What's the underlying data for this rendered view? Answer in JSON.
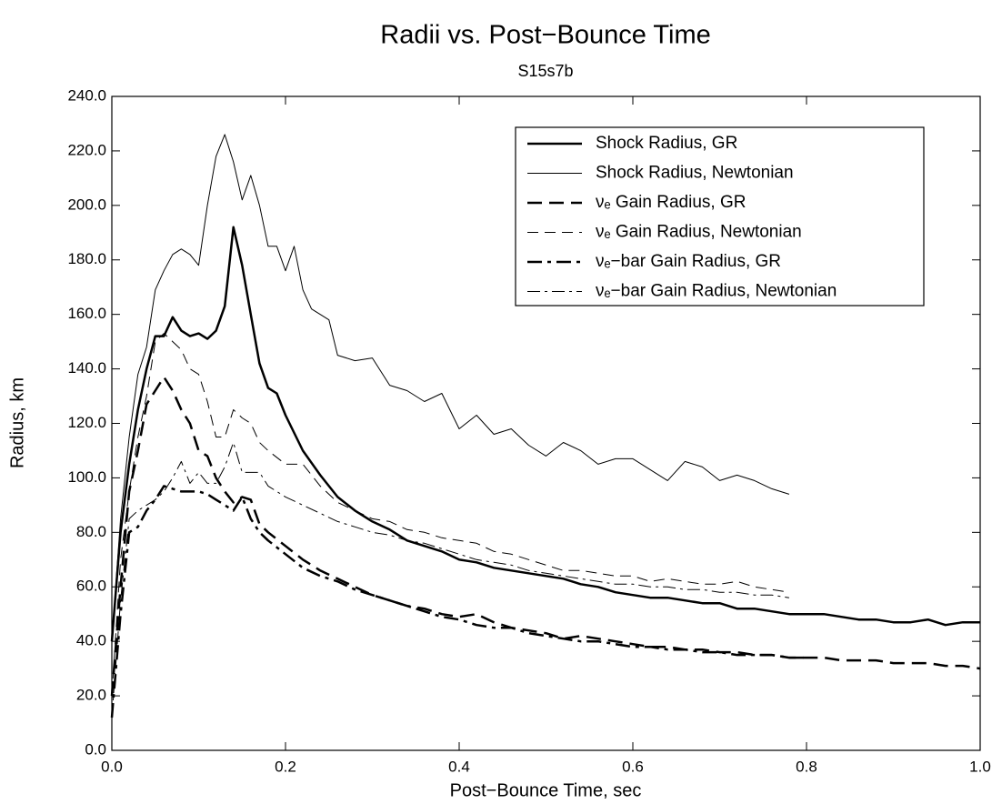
{
  "chart_data": {
    "type": "line",
    "title": "Radii vs. Post−Bounce Time",
    "subtitle": "S15s7b",
    "x_label": "Post−Bounce Time, sec",
    "y_label": "Radius, km",
    "xlim": [
      0,
      1
    ],
    "ylim": [
      0,
      240
    ],
    "xticks": [
      {
        "value": 0,
        "label": "0.0"
      },
      0.2,
      0.4,
      0.6,
      0.8,
      {
        "value": 1,
        "label": "1.0"
      }
    ],
    "yticks": [
      {
        "value": 0,
        "label": "0.0"
      },
      {
        "value": 20,
        "label": "20.0"
      },
      {
        "value": 40,
        "label": "40.0"
      },
      {
        "value": 60,
        "label": "60.0"
      },
      {
        "value": 80,
        "label": "80.0"
      },
      {
        "value": 100,
        "label": "100.0"
      },
      {
        "value": 120,
        "label": "120.0"
      },
      {
        "value": 140,
        "label": "140.0"
      },
      {
        "value": 160,
        "label": "160.0"
      },
      {
        "value": 180,
        "label": "180.0"
      },
      {
        "value": 200,
        "label": "200.0"
      },
      {
        "value": 220,
        "label": "220.0"
      },
      {
        "value": 240,
        "label": "240.0"
      }
    ],
    "legend": "upper right",
    "series": [
      {
        "name": "Shock Radius, GR",
        "color": "#000000",
        "linestyle": "solid",
        "linewidth": 2.5,
        "x": [
          0,
          0.01,
          0.02,
          0.03,
          0.04,
          0.05,
          0.06,
          0.07,
          0.08,
          0.09,
          0.1,
          0.11,
          0.12,
          0.13,
          0.14,
          0.15,
          0.16,
          0.17,
          0.18,
          0.19,
          0.2,
          0.22,
          0.24,
          0.26,
          0.28,
          0.3,
          0.32,
          0.34,
          0.36,
          0.38,
          0.4,
          0.42,
          0.44,
          0.46,
          0.48,
          0.5,
          0.52,
          0.54,
          0.56,
          0.58,
          0.6,
          0.62,
          0.64,
          0.66,
          0.68,
          0.7,
          0.72,
          0.74,
          0.76,
          0.78,
          0.8,
          0.82,
          0.84,
          0.86,
          0.88,
          0.9,
          0.92,
          0.94,
          0.96,
          0.98,
          1
        ],
        "values": [
          40,
          80,
          105,
          125,
          140,
          152,
          152,
          159,
          154,
          152,
          153,
          151,
          154,
          163,
          192,
          178,
          160,
          142,
          133,
          131,
          123,
          110,
          101,
          93,
          88,
          84,
          81,
          77,
          75,
          73,
          70,
          69,
          67,
          66,
          65,
          64,
          63,
          61,
          60,
          58,
          57,
          56,
          56,
          55,
          54,
          54,
          52,
          52,
          51,
          50,
          50,
          50,
          49,
          48,
          48,
          47,
          47,
          48,
          46,
          47,
          47
        ]
      },
      {
        "name": "Shock Radius, Newtonian",
        "color": "#000000",
        "linestyle": "solid",
        "linewidth": 1,
        "x": [
          0,
          0.01,
          0.02,
          0.03,
          0.04,
          0.05,
          0.06,
          0.07,
          0.08,
          0.09,
          0.1,
          0.11,
          0.12,
          0.13,
          0.14,
          0.15,
          0.16,
          0.17,
          0.18,
          0.19,
          0.2,
          0.21,
          0.22,
          0.23,
          0.24,
          0.25,
          0.26,
          0.28,
          0.3,
          0.32,
          0.34,
          0.36,
          0.38,
          0.4,
          0.42,
          0.44,
          0.46,
          0.48,
          0.5,
          0.52,
          0.54,
          0.56,
          0.58,
          0.6,
          0.62,
          0.64,
          0.66,
          0.68,
          0.7,
          0.72,
          0.74,
          0.76,
          0.78
        ],
        "values": [
          40,
          85,
          115,
          138,
          148,
          169,
          176,
          182,
          184,
          182,
          178,
          200,
          218,
          226,
          216,
          202,
          211,
          200,
          185,
          185,
          176,
          185,
          169,
          162,
          160,
          158,
          145,
          143,
          144,
          134,
          132,
          128,
          131,
          118,
          123,
          116,
          118,
          112,
          108,
          113,
          110,
          105,
          107,
          107,
          103,
          99,
          106,
          104,
          99,
          101,
          99,
          96,
          94
        ]
      },
      {
        "name": "νₑ Gain Radius, GR",
        "color": "#000000",
        "linestyle": "dashed",
        "linewidth": 2.5,
        "x": [
          0,
          0.01,
          0.02,
          0.03,
          0.04,
          0.05,
          0.06,
          0.07,
          0.08,
          0.09,
          0.1,
          0.11,
          0.12,
          0.13,
          0.14,
          0.15,
          0.16,
          0.17,
          0.18,
          0.2,
          0.22,
          0.24,
          0.26,
          0.28,
          0.3,
          0.32,
          0.34,
          0.36,
          0.38,
          0.4,
          0.42,
          0.44,
          0.46,
          0.48,
          0.5,
          0.52,
          0.54,
          0.56,
          0.58,
          0.6,
          0.62,
          0.64,
          0.66,
          0.68,
          0.7,
          0.72,
          0.74,
          0.76,
          0.78,
          0.8,
          0.82,
          0.84,
          0.86,
          0.88,
          0.9,
          0.92,
          0.94,
          0.96,
          0.98,
          1
        ],
        "values": [
          20,
          60,
          95,
          110,
          127,
          132,
          137,
          132,
          125,
          120,
          110,
          108,
          100,
          95,
          91,
          93,
          92,
          83,
          80,
          75,
          70,
          66,
          63,
          60,
          57,
          55,
          53,
          52,
          50,
          49,
          50,
          47,
          45,
          44,
          43,
          41,
          42,
          41,
          40,
          39,
          38,
          38,
          37,
          37,
          36,
          36,
          35,
          35,
          34,
          34,
          34,
          33,
          33,
          33,
          32,
          32,
          32,
          31,
          31,
          30
        ]
      },
      {
        "name": "νₑ Gain Radius, Newtonian",
        "color": "#000000",
        "linestyle": "dashed",
        "linewidth": 1,
        "x": [
          0,
          0.01,
          0.02,
          0.03,
          0.04,
          0.05,
          0.06,
          0.07,
          0.08,
          0.09,
          0.1,
          0.11,
          0.12,
          0.13,
          0.14,
          0.15,
          0.16,
          0.17,
          0.18,
          0.2,
          0.22,
          0.24,
          0.26,
          0.28,
          0.3,
          0.32,
          0.34,
          0.36,
          0.38,
          0.4,
          0.42,
          0.44,
          0.46,
          0.48,
          0.5,
          0.52,
          0.54,
          0.56,
          0.58,
          0.6,
          0.62,
          0.64,
          0.66,
          0.68,
          0.7,
          0.72,
          0.74,
          0.76,
          0.78
        ],
        "values": [
          20,
          70,
          95,
          115,
          130,
          150,
          153,
          150,
          147,
          140,
          138,
          128,
          115,
          115,
          125,
          122,
          120,
          113,
          110,
          105,
          105,
          97,
          91,
          88,
          85,
          84,
          81,
          80,
          78,
          77,
          76,
          73,
          72,
          70,
          68,
          66,
          66,
          65,
          64,
          64,
          62,
          63,
          62,
          61,
          61,
          62,
          60,
          59,
          58
        ]
      },
      {
        "name": "νₑ−bar Gain Radius, GR",
        "color": "#000000",
        "linestyle": "dashdot",
        "linewidth": 2.5,
        "x": [
          0,
          0.01,
          0.02,
          0.03,
          0.04,
          0.05,
          0.06,
          0.07,
          0.08,
          0.09,
          0.1,
          0.11,
          0.12,
          0.13,
          0.14,
          0.15,
          0.16,
          0.17,
          0.18,
          0.2,
          0.22,
          0.24,
          0.26,
          0.28,
          0.3,
          0.32,
          0.34,
          0.36,
          0.38,
          0.4,
          0.42,
          0.44,
          0.46,
          0.48,
          0.5,
          0.52,
          0.54,
          0.56,
          0.58,
          0.6,
          0.62,
          0.64,
          0.66,
          0.68,
          0.7,
          0.72,
          0.74,
          0.76,
          0.78,
          0.8
        ],
        "values": [
          12,
          50,
          80,
          82,
          88,
          92,
          97,
          96,
          95,
          95,
          95,
          94,
          92,
          90,
          88,
          93,
          85,
          80,
          77,
          72,
          67,
          64,
          62,
          59,
          57,
          55,
          53,
          51,
          49,
          48,
          46,
          45,
          45,
          43,
          42,
          41,
          40,
          40,
          39,
          38,
          38,
          37,
          37,
          36,
          36,
          35,
          35,
          35,
          34,
          34
        ]
      },
      {
        "name": "νₑ−bar Gain Radius, Newtonian",
        "color": "#000000",
        "linestyle": "dashdot",
        "linewidth": 1,
        "x": [
          0,
          0.01,
          0.02,
          0.03,
          0.04,
          0.05,
          0.06,
          0.07,
          0.08,
          0.09,
          0.1,
          0.11,
          0.12,
          0.13,
          0.14,
          0.15,
          0.16,
          0.17,
          0.18,
          0.2,
          0.22,
          0.24,
          0.26,
          0.28,
          0.3,
          0.32,
          0.34,
          0.36,
          0.38,
          0.4,
          0.42,
          0.44,
          0.46,
          0.48,
          0.5,
          0.52,
          0.54,
          0.56,
          0.58,
          0.6,
          0.62,
          0.64,
          0.66,
          0.68,
          0.7,
          0.72,
          0.74,
          0.76,
          0.78
        ],
        "values": [
          12,
          55,
          85,
          88,
          90,
          92,
          95,
          100,
          106,
          98,
          102,
          98,
          98,
          104,
          113,
          102,
          102,
          102,
          97,
          93,
          90,
          87,
          84,
          82,
          80,
          79,
          77,
          76,
          74,
          72,
          70,
          69,
          68,
          66,
          65,
          64,
          63,
          62,
          61,
          61,
          60,
          60,
          59,
          59,
          58,
          58,
          57,
          57,
          56
        ]
      }
    ]
  }
}
